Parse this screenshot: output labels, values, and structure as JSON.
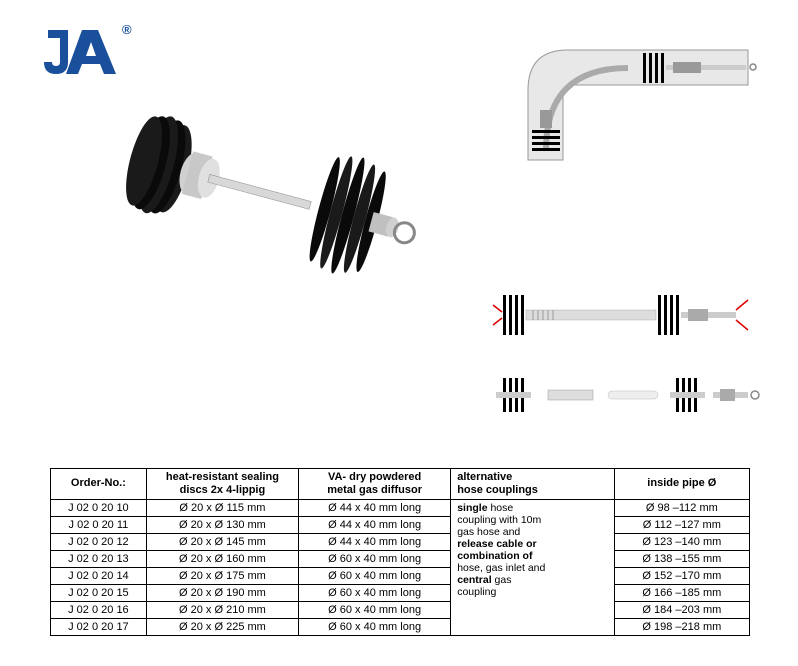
{
  "logo": {
    "color": "#1a4f9c",
    "text": "JA",
    "registered": "®"
  },
  "table": {
    "headers": {
      "order": "Order-No.:",
      "sealing_line1": "heat-resistant sealing",
      "sealing_line2": "discs 2x 4-lippig",
      "diffusor_line1": "VA- dry powdered",
      "diffusor_line2": "metal gas diffusor",
      "coupling_line1": "alternative",
      "coupling_line2": "hose couplings",
      "pipe": "inside pipe Ø"
    },
    "coupling_text": {
      "p1_bold": "single",
      "p1_rest": " hose",
      "p2": "coupling with 10m",
      "p3": "gas hose and",
      "p4_bold": "release cable or",
      "p5_bold": "combination of",
      "p6": "hose, gas inlet and",
      "p7_bold": "central",
      "p7_rest": " gas",
      "p8": "coupling"
    },
    "rows": [
      {
        "order": "J 02 0 20 10",
        "sealing": "Ø 20 x Ø 115 mm",
        "diffusor": "Ø 44 x 40 mm long",
        "pipe": "Ø   98 –112 mm"
      },
      {
        "order": "J 02 0 20 11",
        "sealing": "Ø 20 x Ø 130 mm",
        "diffusor": "Ø 44 x 40 mm long",
        "pipe": "Ø 112 –127 mm"
      },
      {
        "order": "J 02 0 20 12",
        "sealing": "Ø 20 x Ø 145 mm",
        "diffusor": "Ø 44 x 40 mm long",
        "pipe": "Ø 123 –140 mm"
      },
      {
        "order": "J 02 0 20 13",
        "sealing": "Ø 20 x Ø 160 mm",
        "diffusor": "Ø 60 x 40 mm long",
        "pipe": "Ø 138 –155 mm"
      },
      {
        "order": "J 02 0 20 14",
        "sealing": "Ø 20 x Ø 175 mm",
        "diffusor": "Ø 60 x 40 mm long",
        "pipe": "Ø 152 –170 mm"
      },
      {
        "order": "J 02 0 20 15",
        "sealing": "Ø 20 x Ø 190 mm",
        "diffusor": "Ø 60 x 40 mm long",
        "pipe": "Ø 166 –185 mm"
      },
      {
        "order": "J 02 0 20 16",
        "sealing": "Ø 20 x Ø 210 mm",
        "diffusor": "Ø 60 x 40 mm long",
        "pipe": "Ø 184 –203 mm"
      },
      {
        "order": "J 02 0 20 17",
        "sealing": "Ø 20 x Ø 225 mm",
        "diffusor": "Ø 60 x 40 mm long",
        "pipe": "Ø 198 –218 mm"
      }
    ]
  },
  "product_svg": {
    "disc_color": "#1a1a1a",
    "metal_color": "#c8c8c8",
    "metal_light": "#e0e0e0",
    "metal_dark": "#888888"
  },
  "diagram": {
    "pipe_fill": "#e8e8e8",
    "pipe_stroke": "#999999",
    "disc_color": "#000000",
    "rod_color": "#cccccc"
  }
}
